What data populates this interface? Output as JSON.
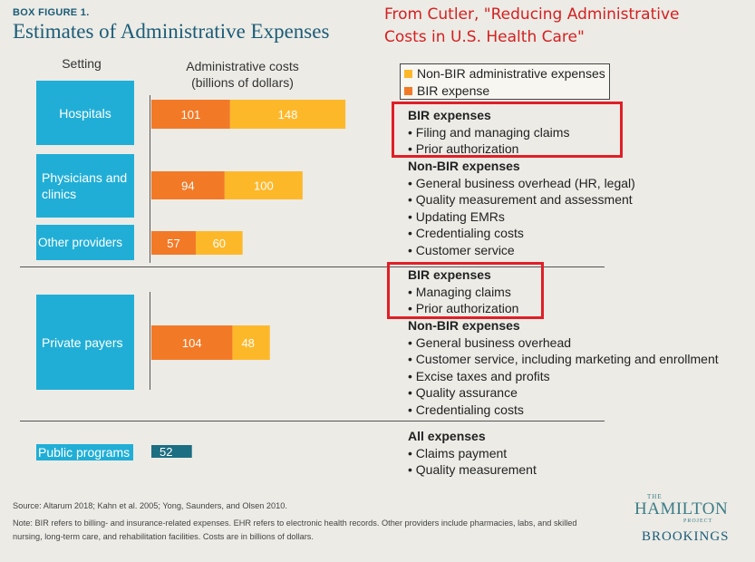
{
  "figure_label": "BOX FIGURE 1.",
  "figure_title": "Estimates of Administrative Expenses",
  "citation": "From Cutler, \"Reducing Administrative Costs in U.S. Health Care\"",
  "column_headers": {
    "setting": "Setting",
    "costs_line1": "Administrative costs",
    "costs_line2": "(billions of dollars)"
  },
  "legend": {
    "non_bir": "Non-BIR administrative expenses",
    "bir": "BIR expense"
  },
  "colors": {
    "bir": "#f27a27",
    "non_bir": "#fdb82a",
    "public": "#1c6e82",
    "setting_box": "#21aed6",
    "highlight": "#e01f26",
    "title": "#1b5c77"
  },
  "chart_data": {
    "type": "bar",
    "orientation": "horizontal",
    "stacked": true,
    "categories": [
      "Hospitals",
      "Physicians and clinics",
      "Other providers",
      "Private payers",
      "Public programs"
    ],
    "series": [
      {
        "name": "BIR expense",
        "values": [
          101,
          94,
          57,
          104,
          52
        ]
      },
      {
        "name": "Non-BIR administrative expenses",
        "values": [
          148,
          100,
          60,
          48,
          null
        ]
      }
    ],
    "xlabel": "Administrative costs (billions of dollars)",
    "legend_position": "top-right"
  },
  "expense_groups": [
    {
      "heading": "BIR expenses",
      "items": [
        "Filing and managing claims",
        "Prior authorization"
      ]
    },
    {
      "heading": "Non-BIR expenses",
      "items": [
        "General business overhead (HR, legal)",
        "Quality measurement and assessment",
        "Updating EMRs",
        "Credentialing costs",
        "Customer service"
      ]
    },
    {
      "heading": "BIR expenses",
      "items": [
        "Managing claims",
        "Prior authorization"
      ]
    },
    {
      "heading": "Non-BIR expenses",
      "items": [
        "General business overhead",
        "Customer service, including marketing and enrollment",
        "Excise taxes and profits",
        "Quality assurance",
        "Credentialing costs"
      ]
    },
    {
      "heading": "All expenses",
      "items": [
        "Claims payment",
        "Quality measurement"
      ]
    }
  ],
  "source": "Source: Altarum 2018; Kahn et al. 2005; Yong, Saunders, and Olsen 2010.",
  "note": "Note: BIR refers to billing- and insurance-related expenses. EHR refers to electronic health records. Other providers include pharmacies, labs, and skilled nursing, long-term care, and rehabilitation facilities. Costs are in billions of dollars.",
  "logo": {
    "the": "THE",
    "hamilton": "HAMILTON",
    "project": "PROJECT",
    "brookings": "BROOKINGS"
  }
}
